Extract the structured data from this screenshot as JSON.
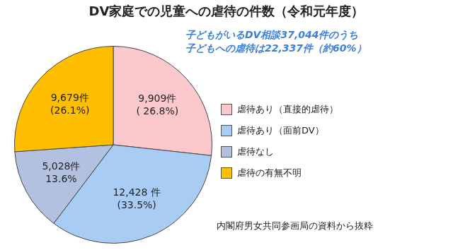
{
  "chart_data": {
    "type": "pie",
    "title": "DV家庭での児童への虐待の件数（令和元年度）",
    "subtitle": [
      "子どもがいるDV相談37,044件のうち",
      "子どもへの虐待は22,337件（約60%）"
    ],
    "source": "内閣府男女共同参画局の資料から抜粋",
    "categories": [
      "虐待あり（直接的虐待）",
      "虐待あり（面前DV）",
      "虐待なし",
      "虐待の有無不明"
    ],
    "values": [
      9909,
      12428,
      5028,
      9679
    ],
    "percentages": [
      26.8,
      33.5,
      13.6,
      26.1
    ],
    "value_labels": [
      [
        "9,909件",
        "( 26.8%)"
      ],
      [
        "12,428 件",
        "(33.5%)"
      ],
      [
        "5,028件",
        "13.6%"
      ],
      [
        "9,679件",
        "(26.1%)"
      ]
    ],
    "colors": [
      "#fbc9cc",
      "#a8ccf4",
      "#b3c1e0",
      "#ffbf00"
    ],
    "legend": "right",
    "data_labels": true
  }
}
